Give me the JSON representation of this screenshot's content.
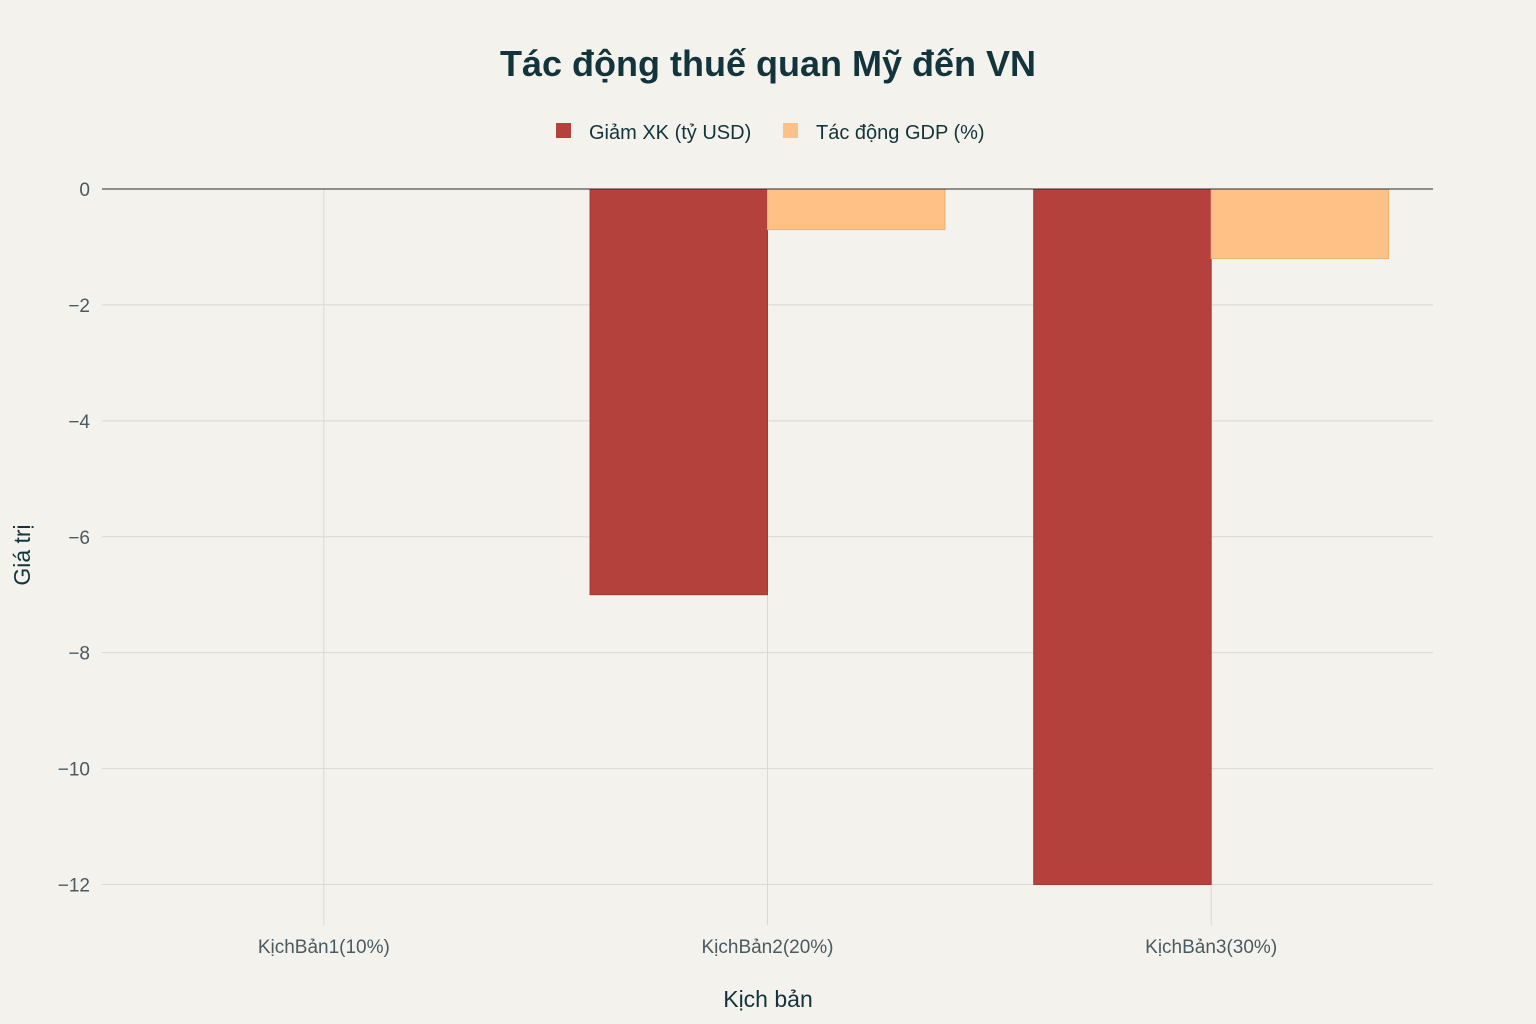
{
  "chart_data": {
    "type": "bar",
    "title": "Tác động thuế quan Mỹ đến VN",
    "xlabel": "Kịch bản",
    "ylabel": "Giá trị",
    "categories": [
      "KịchBản1(10%)",
      "KịchBản2(20%)",
      "KịchBản3(30%)"
    ],
    "series": [
      {
        "name": "Giảm XK (tỷ USD)",
        "values": [
          0,
          -7,
          -12
        ],
        "color": "#b4413c"
      },
      {
        "name": "Tác động GDP (%)",
        "values": [
          0,
          -0.7,
          -1.2
        ],
        "color": "#ffc185"
      }
    ],
    "ylim": [
      -12.7,
      0
    ],
    "yticks": [
      0,
      -2,
      -4,
      -6,
      -8,
      -10,
      -12
    ],
    "ytick_labels": [
      "0",
      "−2",
      "−4",
      "−6",
      "−8",
      "−10",
      "−12"
    ],
    "grid": true,
    "legend_position": "top-center",
    "barmode": "group"
  }
}
